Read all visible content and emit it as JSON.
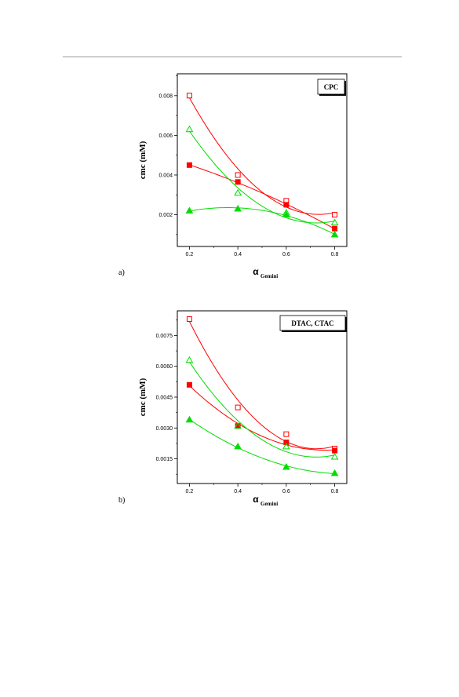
{
  "chart_data": [
    {
      "type": "scatter",
      "panel_label": "a)",
      "legend_box": "CPC",
      "xlabel": "α",
      "xlabel_sub": "Gemini",
      "ylabel": "cmc (mM)",
      "xlim": [
        0.15,
        0.85
      ],
      "ylim": [
        0.0004,
        0.0091
      ],
      "xticks": [
        0.2,
        0.4,
        0.6,
        0.8
      ],
      "xtick_labels": [
        "0.2",
        "0.4",
        "0.6",
        "0.8"
      ],
      "yticks": [
        0.002,
        0.004,
        0.006,
        0.008
      ],
      "ytick_labels": [
        "0.002",
        "0.004",
        "0.006",
        "0.008"
      ],
      "series": [
        {
          "color": "#ff0000",
          "marker": "square-open",
          "x": [
            0.2,
            0.4,
            0.6,
            0.8
          ],
          "y": [
            0.008,
            0.004,
            0.0027,
            0.002
          ]
        },
        {
          "color": "#ff0000",
          "marker": "square-filled",
          "x": [
            0.2,
            0.4,
            0.6,
            0.8
          ],
          "y": [
            0.0045,
            0.00365,
            0.0025,
            0.0013
          ]
        },
        {
          "color": "#00dd00",
          "marker": "triangle-open",
          "x": [
            0.2,
            0.4,
            0.6,
            0.8
          ],
          "y": [
            0.0063,
            0.0031,
            0.0021,
            0.0016
          ]
        },
        {
          "color": "#00dd00",
          "marker": "triangle-filled",
          "x": [
            0.2,
            0.4,
            0.6,
            0.8
          ],
          "y": [
            0.0022,
            0.0023,
            0.002,
            0.001
          ]
        }
      ]
    },
    {
      "type": "scatter",
      "panel_label": "b)",
      "legend_box": "DTAC, CTAC",
      "xlabel": "α",
      "xlabel_sub": "Gemini",
      "ylabel": "cmc (mM)",
      "xlim": [
        0.15,
        0.85
      ],
      "ylim": [
        0.0003,
        0.0087
      ],
      "xticks": [
        0.2,
        0.4,
        0.6,
        0.8
      ],
      "xtick_labels": [
        "0.2",
        "0.4",
        "0.6",
        "0.8"
      ],
      "yticks": [
        0.0015,
        0.003,
        0.0045,
        0.006,
        0.0075
      ],
      "ytick_labels": [
        "0.0015",
        "0.0030",
        "0.0045",
        "0.0060",
        "0.0075"
      ],
      "series": [
        {
          "color": "#ff0000",
          "marker": "square-open",
          "x": [
            0.2,
            0.4,
            0.6,
            0.8
          ],
          "y": [
            0.0083,
            0.004,
            0.0027,
            0.002
          ]
        },
        {
          "color": "#ff0000",
          "marker": "square-filled",
          "x": [
            0.2,
            0.4,
            0.6,
            0.8
          ],
          "y": [
            0.0051,
            0.0031,
            0.0023,
            0.0019
          ]
        },
        {
          "color": "#00dd00",
          "marker": "triangle-open",
          "x": [
            0.2,
            0.4,
            0.6,
            0.8
          ],
          "y": [
            0.0063,
            0.0031,
            0.0021,
            0.0016
          ]
        },
        {
          "color": "#00dd00",
          "marker": "triangle-filled",
          "x": [
            0.2,
            0.4,
            0.6,
            0.8
          ],
          "y": [
            0.0034,
            0.0021,
            0.0011,
            0.0008
          ]
        }
      ]
    }
  ]
}
